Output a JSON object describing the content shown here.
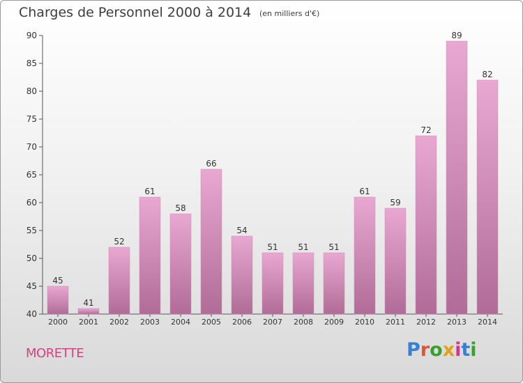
{
  "title": "Charges de Personnel 2000 à 2014",
  "subtitle": "(en milliers d'€)",
  "commune": "MORETTE",
  "brand": {
    "text": "Proxiti",
    "letter_colors": [
      "#3a7fd0",
      "#e2542d",
      "#39a02f",
      "#e0a21c",
      "#d3398a",
      "#3a7fd0",
      "#39a02f"
    ]
  },
  "colors": {
    "bar_top": "#e8a8d1",
    "bar_bottom": "#b06c97",
    "accent": "#d9407f"
  },
  "chart_data": {
    "type": "bar",
    "categories": [
      "2000",
      "2001",
      "2002",
      "2003",
      "2004",
      "2005",
      "2006",
      "2007",
      "2008",
      "2009",
      "2010",
      "2011",
      "2012",
      "2013",
      "2014"
    ],
    "values": [
      45,
      41,
      52,
      61,
      58,
      66,
      54,
      51,
      51,
      51,
      61,
      59,
      72,
      89,
      82
    ],
    "ylim": [
      40,
      90
    ],
    "yticks": [
      40,
      45,
      50,
      55,
      60,
      65,
      70,
      75,
      80,
      85,
      90
    ],
    "grid": false,
    "title": "Charges de Personnel 2000 à 2014",
    "xlabel": "",
    "ylabel": ""
  }
}
